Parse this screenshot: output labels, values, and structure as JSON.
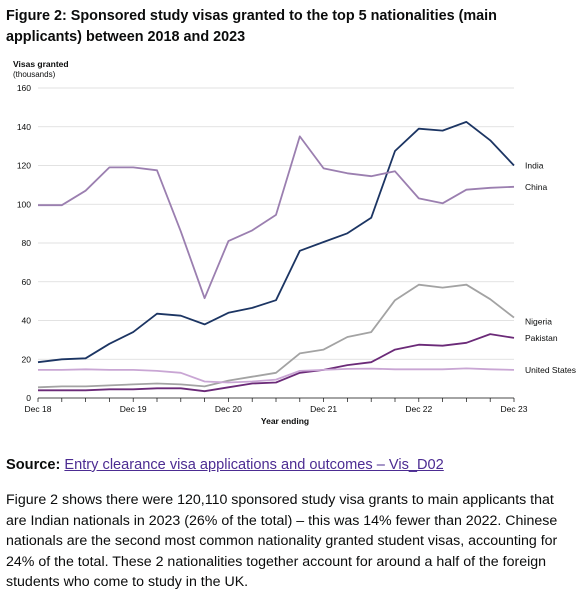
{
  "figure": {
    "label": "Figure 2:",
    "title": "Sponsored study visas granted to the top 5 nationalities (main applicants) between 2018 and 2023"
  },
  "source": {
    "label": "Source:",
    "link_text": "Entry clearance visa applications and outcomes – Vis_D02"
  },
  "body_text": "Figure 2 shows there were 120,110 sponsored study visa grants to main applicants that are Indian nationals in 2023 (26% of the total) – this was 14% fewer than 2022. Chinese nationals are the second most common nationality granted student visas, accounting for 24% of the total. These 2 nationalities together account for around a half of the foreign students who come to study in the UK.",
  "chart_data": {
    "type": "line",
    "ylabel": "Visas granted",
    "yunit": "(thousands)",
    "xlabel": "Year ending",
    "ylim": [
      0,
      160
    ],
    "yticks": [
      0,
      20,
      40,
      60,
      80,
      100,
      120,
      140,
      160
    ],
    "grid": true,
    "x": [
      "Dec 18",
      "Mar 19",
      "Jun 19",
      "Sep 19",
      "Dec 19",
      "Mar 20",
      "Jun 20",
      "Sep 20",
      "Dec 20",
      "Mar 21",
      "Jun 21",
      "Sep 21",
      "Dec 21",
      "Mar 22",
      "Jun 22",
      "Sep 22",
      "Dec 22",
      "Mar 23",
      "Jun 23",
      "Sep 23",
      "Dec 23"
    ],
    "xtick_labels": [
      "Dec 18",
      "Dec 19",
      "Dec 20",
      "Dec 21",
      "Dec 22",
      "Dec 23"
    ],
    "series": [
      {
        "name": "India",
        "color": "#1c3563",
        "values": [
          18.5,
          20,
          20.5,
          28,
          34,
          43.5,
          42.5,
          38,
          44,
          46.5,
          50.5,
          76,
          80.5,
          85,
          93,
          127.5,
          139,
          138,
          142.5,
          133,
          120
        ]
      },
      {
        "name": "China",
        "color": "#9b7fb0",
        "values": [
          99.5,
          99.5,
          107,
          119,
          119,
          117.5,
          86,
          51.5,
          81,
          86.5,
          94.5,
          135,
          118.5,
          116,
          114.5,
          117,
          103,
          100.5,
          107.5,
          108.5,
          109
        ]
      },
      {
        "name": "Nigeria",
        "color": "#a3a3a3",
        "values": [
          5.5,
          6,
          6,
          6.5,
          7,
          7.5,
          7,
          6,
          9,
          11,
          13,
          23,
          25,
          31.5,
          34,
          50.5,
          58.5,
          57,
          58.5,
          51,
          41.5
        ]
      },
      {
        "name": "Pakistan",
        "color": "#6b2a78",
        "values": [
          4,
          4,
          4,
          4.5,
          4.5,
          5,
          5,
          3.5,
          5.5,
          7.5,
          8,
          13,
          14.5,
          17,
          18.5,
          25,
          27.5,
          27,
          28.5,
          33,
          31
        ]
      },
      {
        "name": "United States",
        "color": "#c9a6d4",
        "values": [
          14.5,
          14.5,
          14.8,
          14.5,
          14.5,
          14,
          13,
          8.5,
          8,
          8.5,
          9.5,
          14,
          14.5,
          15,
          15.2,
          14.8,
          14.8,
          14.8,
          15.3,
          14.8,
          14.5
        ]
      }
    ]
  }
}
